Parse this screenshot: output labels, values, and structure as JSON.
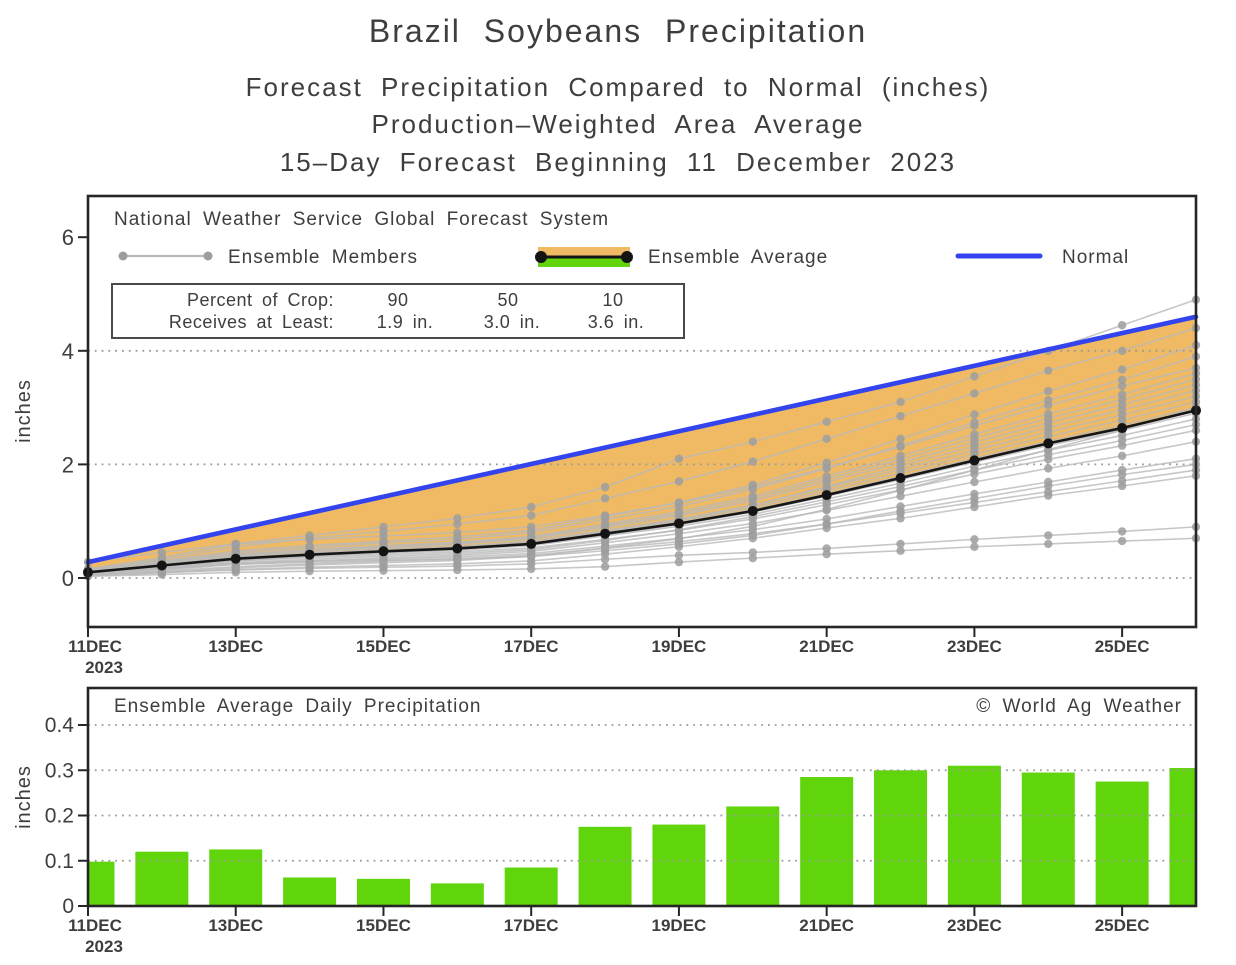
{
  "titles": {
    "line1": "Brazil Soybeans Precipitation",
    "line2": "Forecast Precipitation Compared to Normal (inches)",
    "line3": "Production–Weighted Area Average",
    "line4": "15–Day Forecast Beginning 11 December 2023"
  },
  "top_chart": {
    "legend": {
      "source": "National Weather Service Global Forecast System",
      "members_label": "Ensemble Members",
      "average_label": "Ensemble Average",
      "normal_label": "Normal"
    },
    "crop_table": {
      "row1_label": "Percent of Crop:",
      "row2_label": "Receives at Least:",
      "percents": [
        "90",
        "50",
        "10"
      ],
      "amounts": [
        "1.9 in.",
        "3.0 in.",
        "3.6 in."
      ]
    },
    "ylabel": "inches",
    "yticks": [
      "6",
      "4",
      "2",
      "0"
    ]
  },
  "bottom_chart": {
    "title": "Ensemble Average Daily Precipitation",
    "copyright": "© World Ag Weather",
    "ylabel": "inches",
    "yticks": [
      "0.4",
      "0.3",
      "0.2",
      "0.1",
      "0"
    ]
  },
  "x_axis": {
    "tick_labels": [
      "11DEC",
      "13DEC",
      "15DEC",
      "17DEC",
      "19DEC",
      "21DEC",
      "23DEC",
      "25DEC"
    ],
    "year": "2023"
  },
  "colors": {
    "band": "#efba63",
    "normal": "#3344ef",
    "green": "#60d50c",
    "member_line": "#b9b9b9",
    "member_dot": "#9d9d9d",
    "average": "#141414",
    "axis": "#262626",
    "grid": "#9a9a9a",
    "text": "#3e3e3e"
  },
  "chart_data": [
    {
      "type": "line",
      "title": "Forecast cumulative precipitation compared to normal",
      "ylabel": "inches",
      "ylim": [
        0,
        6
      ],
      "grid": true,
      "legend_position": "top-inside",
      "dates": [
        "11DEC",
        "12DEC",
        "13DEC",
        "14DEC",
        "15DEC",
        "16DEC",
        "17DEC",
        "18DEC",
        "19DEC",
        "20DEC",
        "21DEC",
        "22DEC",
        "23DEC",
        "24DEC",
        "25DEC",
        "26DEC"
      ],
      "percentile_table": {
        "percent_of_crop": [
          90,
          50,
          10
        ],
        "receives_at_least_in": [
          1.9,
          3.0,
          3.6
        ]
      },
      "band_between": [
        "Normal",
        "Ensemble Average"
      ],
      "series": [
        {
          "name": "Ensemble Average",
          "values": [
            0.1,
            0.22,
            0.34,
            0.41,
            0.47,
            0.52,
            0.6,
            0.78,
            0.96,
            1.18,
            1.46,
            1.76,
            2.07,
            2.37,
            2.64,
            2.95
          ]
        },
        {
          "name": "Normal",
          "values": [
            0.28,
            0.57,
            0.86,
            1.14,
            1.43,
            1.72,
            2.01,
            2.3,
            2.58,
            2.87,
            3.16,
            3.45,
            3.74,
            4.02,
            4.31,
            4.6
          ]
        }
      ],
      "members": [
        [
          0.03,
          0.06,
          0.1,
          0.12,
          0.13,
          0.14,
          0.16,
          0.2,
          0.28,
          0.35,
          0.42,
          0.48,
          0.55,
          0.6,
          0.65,
          0.7
        ],
        [
          0.06,
          0.1,
          0.14,
          0.17,
          0.19,
          0.21,
          0.25,
          0.33,
          0.4,
          0.45,
          0.52,
          0.6,
          0.68,
          0.75,
          0.82,
          0.9
        ],
        [
          0.04,
          0.09,
          0.15,
          0.19,
          0.22,
          0.25,
          0.3,
          0.42,
          0.55,
          0.7,
          0.88,
          1.05,
          1.25,
          1.45,
          1.62,
          1.8
        ],
        [
          0.08,
          0.16,
          0.24,
          0.28,
          0.31,
          0.34,
          0.4,
          0.52,
          0.64,
          0.78,
          0.95,
          1.14,
          1.33,
          1.52,
          1.71,
          1.9
        ],
        [
          0.05,
          0.12,
          0.2,
          0.25,
          0.3,
          0.33,
          0.38,
          0.48,
          0.6,
          0.75,
          0.95,
          1.18,
          1.4,
          1.62,
          1.82,
          2.0
        ],
        [
          0.1,
          0.18,
          0.26,
          0.3,
          0.33,
          0.37,
          0.43,
          0.56,
          0.7,
          0.85,
          1.04,
          1.26,
          1.48,
          1.69,
          1.9,
          2.1
        ],
        [
          0.06,
          0.14,
          0.24,
          0.3,
          0.35,
          0.4,
          0.47,
          0.62,
          0.78,
          0.96,
          1.19,
          1.44,
          1.69,
          1.93,
          2.15,
          2.4
        ],
        [
          0.09,
          0.19,
          0.3,
          0.36,
          0.41,
          0.46,
          0.53,
          0.68,
          0.84,
          1.04,
          1.29,
          1.55,
          1.83,
          2.09,
          2.33,
          2.6
        ],
        [
          0.07,
          0.16,
          0.27,
          0.33,
          0.38,
          0.43,
          0.5,
          0.66,
          0.85,
          1.08,
          1.34,
          1.61,
          1.9,
          2.17,
          2.42,
          2.7
        ],
        [
          0.09,
          0.21,
          0.32,
          0.39,
          0.44,
          0.49,
          0.57,
          0.74,
          0.91,
          1.12,
          1.39,
          1.67,
          1.97,
          2.25,
          2.51,
          2.8
        ],
        [
          0.1,
          0.21,
          0.34,
          0.4,
          0.46,
          0.51,
          0.59,
          0.76,
          0.94,
          1.16,
          1.44,
          1.73,
          2.04,
          2.33,
          2.6,
          2.9
        ],
        [
          0.1,
          0.22,
          0.35,
          0.41,
          0.47,
          0.53,
          0.61,
          0.79,
          0.97,
          1.2,
          1.49,
          1.79,
          2.11,
          2.41,
          2.69,
          3.0
        ],
        [
          0.04,
          0.1,
          0.18,
          0.23,
          0.27,
          0.31,
          0.38,
          0.53,
          0.69,
          0.91,
          1.21,
          1.54,
          1.9,
          2.26,
          2.6,
          3.0
        ],
        [
          0.11,
          0.23,
          0.36,
          0.43,
          0.49,
          0.54,
          0.63,
          0.82,
          1.0,
          1.24,
          1.54,
          1.85,
          2.18,
          2.49,
          2.78,
          3.1
        ],
        [
          0.11,
          0.24,
          0.37,
          0.44,
          0.51,
          0.56,
          0.65,
          0.84,
          1.04,
          1.28,
          1.59,
          1.91,
          2.25,
          2.57,
          2.87,
          3.2
        ],
        [
          0.08,
          0.18,
          0.3,
          0.38,
          0.44,
          0.5,
          0.6,
          0.8,
          1.02,
          1.28,
          1.61,
          1.97,
          2.32,
          2.65,
          2.96,
          3.3
        ],
        [
          0.12,
          0.25,
          0.39,
          0.47,
          0.54,
          0.6,
          0.69,
          0.89,
          1.1,
          1.36,
          1.69,
          2.03,
          2.39,
          2.73,
          3.05,
          3.4
        ],
        [
          0.12,
          0.26,
          0.41,
          0.48,
          0.55,
          0.61,
          0.71,
          0.92,
          1.13,
          1.4,
          1.74,
          2.09,
          2.46,
          2.81,
          3.14,
          3.5
        ],
        [
          0.12,
          0.27,
          0.42,
          0.5,
          0.57,
          0.63,
          0.73,
          0.95,
          1.17,
          1.44,
          1.79,
          2.15,
          2.53,
          2.89,
          3.23,
          3.6
        ],
        [
          0.28,
          0.45,
          0.6,
          0.68,
          0.74,
          0.8,
          0.9,
          1.1,
          1.32,
          1.6,
          1.94,
          2.31,
          2.68,
          3.04,
          3.38,
          3.7
        ],
        [
          0.13,
          0.29,
          0.45,
          0.54,
          0.62,
          0.68,
          0.8,
          1.03,
          1.26,
          1.56,
          1.93,
          2.33,
          2.74,
          3.13,
          3.49,
          3.9
        ],
        [
          0.14,
          0.3,
          0.48,
          0.57,
          0.65,
          0.72,
          0.84,
          1.08,
          1.33,
          1.64,
          2.03,
          2.45,
          2.88,
          3.29,
          3.67,
          4.1
        ],
        [
          0.15,
          0.33,
          0.55,
          0.7,
          0.82,
          0.95,
          1.1,
          1.4,
          1.7,
          2.05,
          2.45,
          2.85,
          3.25,
          3.65,
          4.0,
          4.4
        ],
        [
          0.16,
          0.36,
          0.6,
          0.75,
          0.9,
          1.05,
          1.25,
          1.6,
          2.1,
          2.4,
          2.75,
          3.1,
          3.55,
          4.0,
          4.45,
          4.9
        ]
      ]
    },
    {
      "type": "bar",
      "title": "Ensemble Average Daily Precipitation",
      "ylabel": "inches",
      "ylim": [
        0,
        0.45
      ],
      "grid": true,
      "categories": [
        "11DEC",
        "12DEC",
        "13DEC",
        "14DEC",
        "15DEC",
        "16DEC",
        "17DEC",
        "18DEC",
        "19DEC",
        "20DEC",
        "21DEC",
        "22DEC",
        "23DEC",
        "24DEC",
        "25DEC",
        "26DEC"
      ],
      "values": [
        0.098,
        0.12,
        0.125,
        0.063,
        0.06,
        0.05,
        0.085,
        0.175,
        0.18,
        0.22,
        0.285,
        0.3,
        0.31,
        0.295,
        0.275,
        0.305
      ]
    }
  ]
}
